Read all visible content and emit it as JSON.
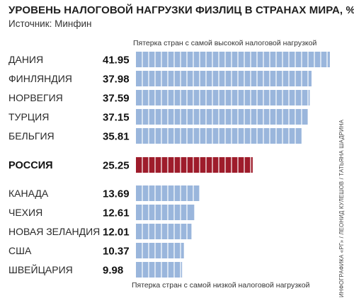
{
  "title": "УРОВЕНЬ НАЛОГОВОЙ НАГРУЗКИ ФИЗЛИЦ В СТРАНАХ МИРА, %",
  "source": "Источник: Минфин",
  "note_top": "Пятерка стран с самой высокой налоговой нагрузкой",
  "note_bottom": "Пятерка стран с самой низкой налоговой нагрузкой",
  "credit": "ИНФОГРАФИКА «РГ» / ЛЕОНИД КУЛЕШОВ / ТАТЬЯНА ШАДРИНА",
  "colors": {
    "bar": "#9ab6dc",
    "bar_stripe": "#ffffff",
    "highlight": "#9e1c2b"
  },
  "chart_data": {
    "type": "bar",
    "orientation": "horizontal",
    "title": "УРОВЕНЬ НАЛОГОВОЙ НАГРУЗКИ ФИЗЛИЦ В СТРАНАХ МИРА, %",
    "categories": [
      "ДАНИЯ",
      "ФИНЛЯНДИЯ",
      "НОРВЕГИЯ",
      "ТУРЦИЯ",
      "БЕЛЬГИЯ",
      "РОССИЯ",
      "КАНАДА",
      "ЧЕХИЯ",
      "НОВАЯ ЗЕЛАНДИЯ",
      "США",
      "ШВЕЙЦАРИЯ"
    ],
    "values": [
      41.95,
      37.98,
      37.59,
      37.15,
      35.81,
      25.25,
      13.69,
      12.61,
      12.01,
      10.37,
      9.98
    ],
    "value_labels": [
      "41.95",
      "37.98",
      "37.59",
      "37.15",
      "35.81",
      "25.25",
      "13.69",
      "12.61",
      "12.01",
      "10.37",
      "9.98"
    ],
    "highlight": "РОССИЯ",
    "groups": [
      {
        "label": "Пятерка стран с самой высокой налоговой нагрузкой",
        "categories": [
          "ДАНИЯ",
          "ФИНЛЯНДИЯ",
          "НОРВЕГИЯ",
          "ТУРЦИЯ",
          "БЕЛЬГИЯ"
        ]
      },
      {
        "label": "Пятерка стран с самой низкой налоговой нагрузкой",
        "categories": [
          "КАНАДА",
          "ЧЕХИЯ",
          "НОВАЯ ЗЕЛАНДИЯ",
          "США",
          "ШВЕЙЦАРИЯ"
        ]
      }
    ],
    "grid": false,
    "legend": "none"
  }
}
